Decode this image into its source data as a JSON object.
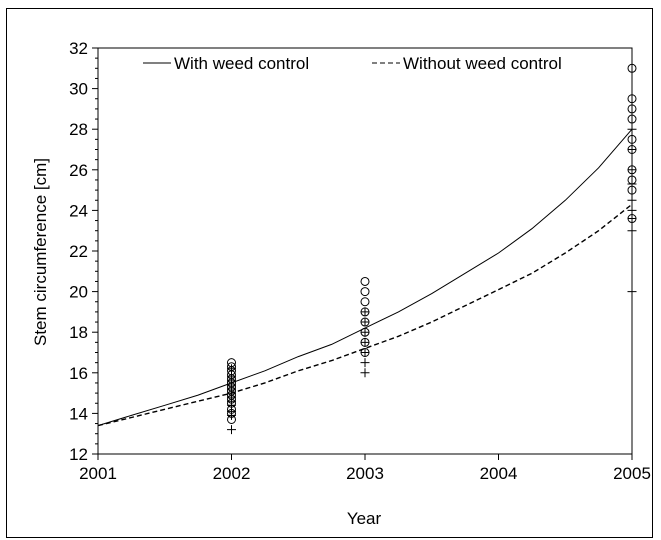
{
  "chart_data": {
    "type": "scatter",
    "xlabel": "Year",
    "ylabel": "Stem  circumference  [cm]",
    "xlim": [
      2001,
      2005
    ],
    "ylim": [
      12,
      32
    ],
    "x_ticks": [
      2001,
      2002,
      2003,
      2004,
      2005
    ],
    "y_ticks": [
      12,
      14,
      16,
      18,
      20,
      22,
      24,
      26,
      28,
      30,
      32
    ],
    "grid": false,
    "legend_placement": "top",
    "series": [
      {
        "name": "With weed control",
        "line_style": "solid",
        "marker": "circle",
        "curve": [
          {
            "x": 2001.0,
            "y": 13.4
          },
          {
            "x": 2001.25,
            "y": 13.9
          },
          {
            "x": 2001.5,
            "y": 14.4
          },
          {
            "x": 2001.75,
            "y": 14.9
          },
          {
            "x": 2002.0,
            "y": 15.5
          },
          {
            "x": 2002.25,
            "y": 16.1
          },
          {
            "x": 2002.5,
            "y": 16.8
          },
          {
            "x": 2002.75,
            "y": 17.4
          },
          {
            "x": 2003.0,
            "y": 18.2
          },
          {
            "x": 2003.25,
            "y": 19.0
          },
          {
            "x": 2003.5,
            "y": 19.9
          },
          {
            "x": 2003.75,
            "y": 20.9
          },
          {
            "x": 2004.0,
            "y": 21.9
          },
          {
            "x": 2004.25,
            "y": 23.1
          },
          {
            "x": 2004.5,
            "y": 24.5
          },
          {
            "x": 2004.75,
            "y": 26.1
          },
          {
            "x": 2005.0,
            "y": 28.0
          }
        ],
        "points": [
          {
            "x": 2002,
            "y": 16.5
          },
          {
            "x": 2002,
            "y": 16.3
          },
          {
            "x": 2002,
            "y": 16.1
          },
          {
            "x": 2002,
            "y": 15.9
          },
          {
            "x": 2002,
            "y": 15.7
          },
          {
            "x": 2002,
            "y": 15.5
          },
          {
            "x": 2002,
            "y": 15.3
          },
          {
            "x": 2002,
            "y": 15.1
          },
          {
            "x": 2002,
            "y": 14.9
          },
          {
            "x": 2002,
            "y": 14.7
          },
          {
            "x": 2002,
            "y": 14.5
          },
          {
            "x": 2002,
            "y": 14.2
          },
          {
            "x": 2002,
            "y": 14.0
          },
          {
            "x": 2002,
            "y": 13.7
          },
          {
            "x": 2003,
            "y": 20.5
          },
          {
            "x": 2003,
            "y": 20.0
          },
          {
            "x": 2003,
            "y": 19.5
          },
          {
            "x": 2003,
            "y": 19.0
          },
          {
            "x": 2003,
            "y": 18.5
          },
          {
            "x": 2003,
            "y": 18.0
          },
          {
            "x": 2003,
            "y": 17.5
          },
          {
            "x": 2003,
            "y": 17.0
          },
          {
            "x": 2005,
            "y": 31.0
          },
          {
            "x": 2005,
            "y": 29.5
          },
          {
            "x": 2005,
            "y": 29.0
          },
          {
            "x": 2005,
            "y": 28.5
          },
          {
            "x": 2005,
            "y": 27.5
          },
          {
            "x": 2005,
            "y": 27.0
          },
          {
            "x": 2005,
            "y": 26.0
          },
          {
            "x": 2005,
            "y": 25.5
          },
          {
            "x": 2005,
            "y": 25.0
          },
          {
            "x": 2005,
            "y": 23.6
          }
        ]
      },
      {
        "name": "Without weed control",
        "line_style": "dashed",
        "marker": "plus",
        "curve": [
          {
            "x": 2001.0,
            "y": 13.4
          },
          {
            "x": 2001.25,
            "y": 13.8
          },
          {
            "x": 2001.5,
            "y": 14.2
          },
          {
            "x": 2001.75,
            "y": 14.6
          },
          {
            "x": 2002.0,
            "y": 15.0
          },
          {
            "x": 2002.25,
            "y": 15.5
          },
          {
            "x": 2002.5,
            "y": 16.1
          },
          {
            "x": 2002.75,
            "y": 16.6
          },
          {
            "x": 2003.0,
            "y": 17.2
          },
          {
            "x": 2003.25,
            "y": 17.8
          },
          {
            "x": 2003.5,
            "y": 18.5
          },
          {
            "x": 2003.75,
            "y": 19.3
          },
          {
            "x": 2004.0,
            "y": 20.1
          },
          {
            "x": 2004.25,
            "y": 20.9
          },
          {
            "x": 2004.5,
            "y": 21.9
          },
          {
            "x": 2004.75,
            "y": 23.0
          },
          {
            "x": 2005.0,
            "y": 24.3
          }
        ],
        "points": [
          {
            "x": 2002,
            "y": 16.2
          },
          {
            "x": 2002,
            "y": 15.8
          },
          {
            "x": 2002,
            "y": 15.6
          },
          {
            "x": 2002,
            "y": 15.4
          },
          {
            "x": 2002,
            "y": 15.2
          },
          {
            "x": 2002,
            "y": 15.0
          },
          {
            "x": 2002,
            "y": 14.8
          },
          {
            "x": 2002,
            "y": 14.6
          },
          {
            "x": 2002,
            "y": 14.4
          },
          {
            "x": 2002,
            "y": 14.1
          },
          {
            "x": 2002,
            "y": 13.9
          },
          {
            "x": 2002,
            "y": 13.2
          },
          {
            "x": 2003,
            "y": 19.0
          },
          {
            "x": 2003,
            "y": 18.5
          },
          {
            "x": 2003,
            "y": 18.0
          },
          {
            "x": 2003,
            "y": 17.5
          },
          {
            "x": 2003,
            "y": 17.0
          },
          {
            "x": 2003,
            "y": 16.5
          },
          {
            "x": 2003,
            "y": 16.0
          },
          {
            "x": 2005,
            "y": 28.0
          },
          {
            "x": 2005,
            "y": 27.0
          },
          {
            "x": 2005,
            "y": 26.0
          },
          {
            "x": 2005,
            "y": 25.3
          },
          {
            "x": 2005,
            "y": 24.5
          },
          {
            "x": 2005,
            "y": 24.0
          },
          {
            "x": 2005,
            "y": 23.6
          },
          {
            "x": 2005,
            "y": 23.0
          },
          {
            "x": 2005,
            "y": 20.0
          }
        ]
      }
    ],
    "colors": {
      "ink": "#000000",
      "background": "#ffffff"
    }
  }
}
